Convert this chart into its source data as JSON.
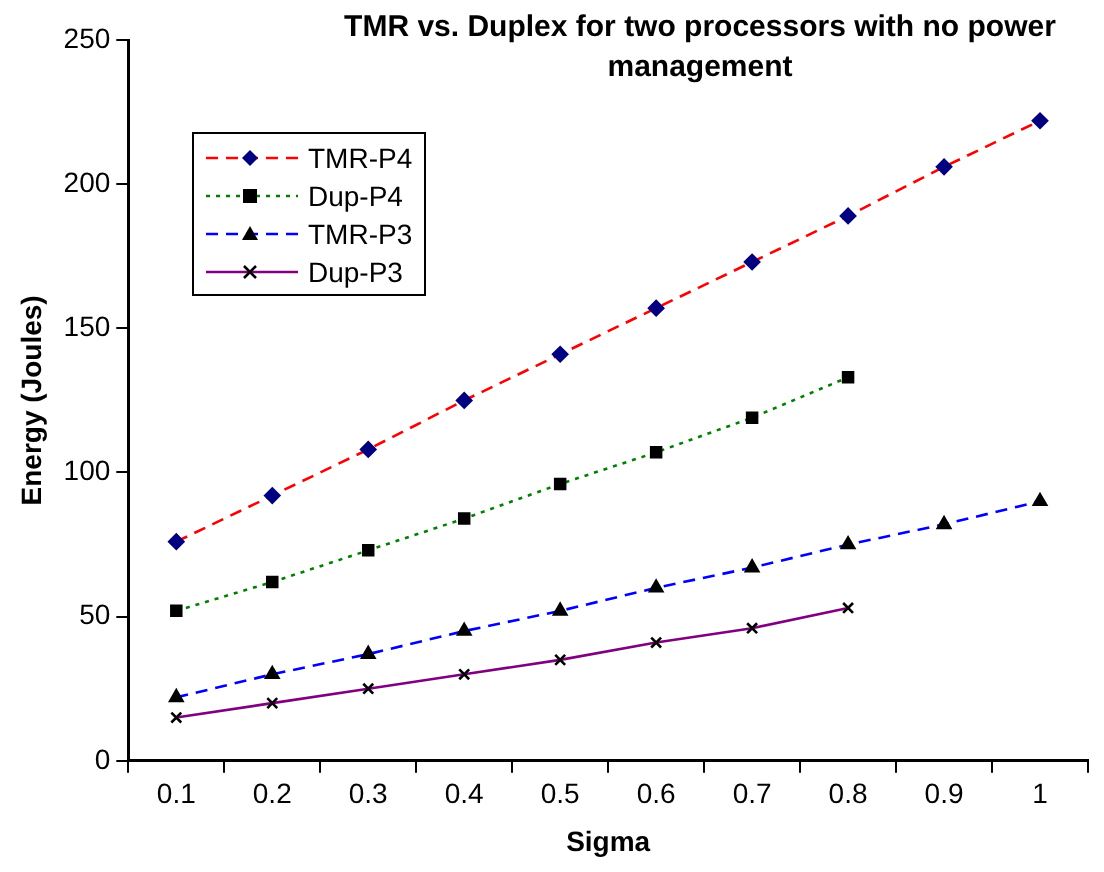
{
  "chart_data": {
    "type": "line",
    "title": "TMR vs. Duplex for two processors with no power management",
    "xlabel": "Sigma",
    "ylabel": "Energy (Joules)",
    "categories": [
      "0.1",
      "0.2",
      "0.3",
      "0.4",
      "0.5",
      "0.6",
      "0.7",
      "0.8",
      "0.9",
      "1"
    ],
    "ylim": [
      0,
      250
    ],
    "yticks": [
      0,
      50,
      100,
      150,
      200,
      250
    ],
    "grid": false,
    "legend": "top left",
    "series": [
      {
        "name": "TMR-P4",
        "color": "#ff0000",
        "marker": "diamond",
        "line_style": "dashed",
        "values": [
          76,
          92,
          108,
          125,
          141,
          157,
          173,
          189,
          206,
          222
        ]
      },
      {
        "name": "Dup-P4",
        "color": "#008000",
        "marker": "square",
        "line_style": "dotted",
        "values": [
          52,
          62,
          73,
          84,
          96,
          107,
          119,
          133,
          null,
          null
        ]
      },
      {
        "name": "TMR-P3",
        "color": "#0000ff",
        "marker": "triangle",
        "line_style": "dashed",
        "values": [
          22,
          30,
          37,
          45,
          52,
          60,
          67,
          75,
          82,
          90
        ]
      },
      {
        "name": "Dup-P3",
        "color": "#800080",
        "marker": "cross",
        "line_style": "solid",
        "values": [
          15,
          20,
          25,
          30,
          35,
          41,
          46,
          53,
          null,
          null
        ]
      }
    ]
  }
}
